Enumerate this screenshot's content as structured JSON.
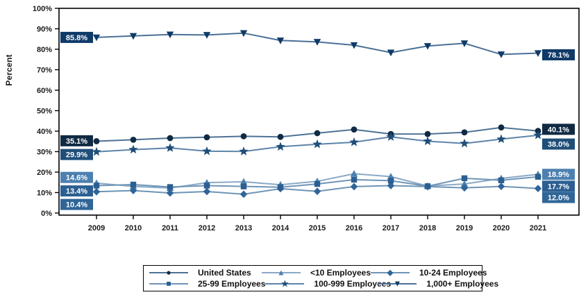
{
  "chart_data": {
    "type": "line",
    "title": "",
    "xlabel": "",
    "ylabel": "Percent",
    "ylim": [
      0,
      100
    ],
    "yticks": [
      0,
      10,
      20,
      30,
      40,
      50,
      60,
      70,
      80,
      90,
      100
    ],
    "ytick_suffix": "%",
    "grid": "off",
    "legend_position": "bottom",
    "x": [
      2009,
      2010,
      2011,
      2012,
      2013,
      2014,
      2015,
      2016,
      2017,
      2018,
      2019,
      2020,
      2021
    ],
    "series": [
      {
        "name": "United States",
        "marker": "circle",
        "color": "#102a43",
        "line_color": "#4e7296",
        "glyph": "●",
        "values": [
          35.1,
          35.8,
          36.6,
          37.0,
          37.5,
          37.2,
          39.0,
          40.8,
          38.6,
          38.6,
          39.4,
          41.8,
          40.1
        ]
      },
      {
        "name": "<10 Employees",
        "marker": "triangle-up",
        "color": "#4d80b0",
        "line_color": "#8aa9c6",
        "glyph": "▲",
        "values": [
          14.6,
          13.0,
          12.2,
          14.8,
          15.3,
          13.8,
          15.5,
          19.2,
          17.8,
          13.2,
          14.2,
          16.9,
          18.9
        ]
      },
      {
        "name": "10-24 Employees",
        "marker": "diamond",
        "color": "#2f6597",
        "line_color": "#6e94b6",
        "glyph": "◆",
        "values": [
          10.4,
          11.0,
          9.8,
          10.5,
          9.2,
          11.9,
          10.6,
          12.9,
          13.4,
          12.9,
          12.3,
          13.0,
          12.0
        ]
      },
      {
        "name": "25-99 Employees",
        "marker": "square",
        "color": "#2c5f91",
        "line_color": "#6e94b6",
        "glyph": "■",
        "values": [
          13.4,
          13.9,
          12.7,
          13.4,
          13.0,
          12.6,
          14.2,
          16.3,
          15.8,
          13.1,
          17.0,
          16.0,
          17.7
        ]
      },
      {
        "name": "100-999 Employees",
        "marker": "star",
        "color": "#1f4e79",
        "line_color": "#5c84a9",
        "glyph": "★",
        "values": [
          29.9,
          31.0,
          31.8,
          30.2,
          30.1,
          32.4,
          33.6,
          34.6,
          37.2,
          35.1,
          34.0,
          36.1,
          38.0
        ]
      },
      {
        "name": "1,000+ Employees",
        "marker": "triangle-down",
        "color": "#0f3a68",
        "line_color": "#4a7096",
        "glyph": "▼",
        "values": [
          85.8,
          86.5,
          87.2,
          87.0,
          87.9,
          84.3,
          83.6,
          82.0,
          78.4,
          81.6,
          82.9,
          77.5,
          78.1
        ]
      }
    ],
    "annotations": [
      {
        "side": "left",
        "text": "85.8%",
        "bg": "#0f3a68",
        "pos": 85.8
      },
      {
        "side": "left",
        "text": "35.1%",
        "bg": "#102a43",
        "pos": 35.3
      },
      {
        "side": "left",
        "text": "29.9%",
        "bg": "#1f4e79",
        "pos": 28.6
      },
      {
        "side": "left",
        "text": "14.6%",
        "bg": "#4d80b0",
        "pos": 17.4
      },
      {
        "side": "left",
        "text": "13.4%",
        "bg": "#2c5f91",
        "pos": 10.8
      },
      {
        "side": "left",
        "text": "10.4%",
        "bg": "#2f6597",
        "pos": 4.2
      },
      {
        "side": "right",
        "text": "78.1%",
        "bg": "#0f3a68",
        "pos": 77.3
      },
      {
        "side": "right",
        "text": "40.1%",
        "bg": "#102a43",
        "pos": 40.9
      },
      {
        "side": "right",
        "text": "38.0%",
        "bg": "#1f4e79",
        "pos": 33.7
      },
      {
        "side": "right",
        "text": "18.9%",
        "bg": "#4d80b0",
        "pos": 18.9
      },
      {
        "side": "right",
        "text": "17.7%",
        "bg": "#2c5f91",
        "pos": 13.1
      },
      {
        "side": "right",
        "text": "12.0%",
        "bg": "#2f6597",
        "pos": 7.6
      }
    ],
    "legend_order": [
      [
        0,
        1,
        2
      ],
      [
        3,
        4,
        5
      ]
    ]
  }
}
